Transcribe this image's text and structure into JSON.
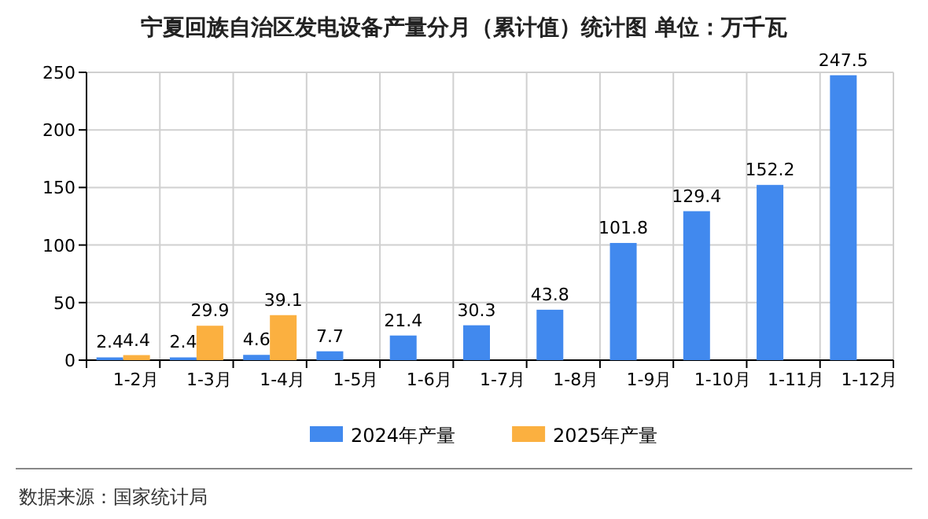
{
  "chart_data": {
    "type": "bar",
    "title": "宁夏回族自治区发电设备产量分月（累计值）统计图 单位：万千瓦",
    "categories": [
      "1-2月",
      "1-3月",
      "1-4月",
      "1-5月",
      "1-6月",
      "1-7月",
      "1-8月",
      "1-9月",
      "1-10月",
      "1-11月",
      "1-12月"
    ],
    "series": [
      {
        "name": "2024年产量",
        "color": "#4189ee",
        "values": [
          2.4,
          2.4,
          4.6,
          7.7,
          21.4,
          30.3,
          43.8,
          101.8,
          129.4,
          152.2,
          247.5
        ]
      },
      {
        "name": "2025年产量",
        "color": "#fbb040",
        "values": [
          4.4,
          29.9,
          39.1,
          null,
          null,
          null,
          null,
          null,
          null,
          null,
          null
        ]
      }
    ],
    "ylim": [
      0,
      250
    ],
    "yticks": [
      0,
      50,
      100,
      150,
      200,
      250
    ],
    "grid": true,
    "legend": "bottom",
    "data_labels": true,
    "annotations": [
      "数据来源：国家统计局"
    ]
  }
}
